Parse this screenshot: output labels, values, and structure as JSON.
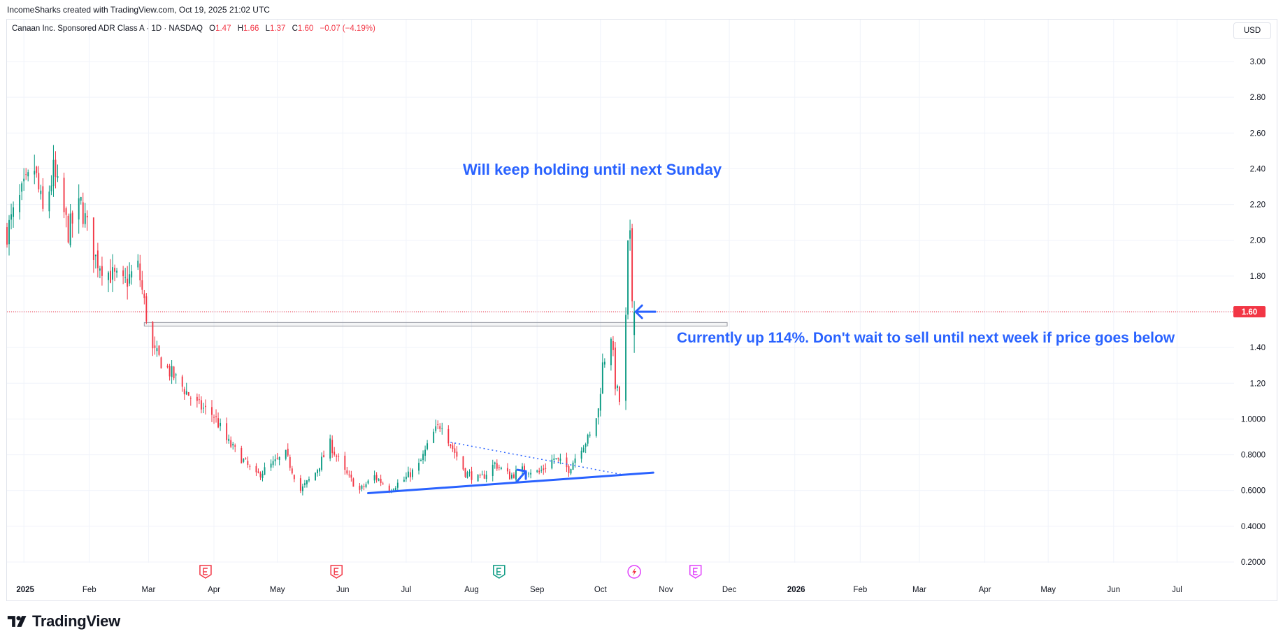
{
  "credit": "IncomeSharks created with TradingView.com, Oct 19, 2025 21:02 UTC",
  "legend": {
    "symbol": "Canaan Inc. Sponsored ADR Class A · 1D · NASDAQ",
    "o_label": "O",
    "o_value": "1.47",
    "h_label": "H",
    "h_value": "1.66",
    "l_label": "L",
    "l_value": "1.37",
    "c_label": "C",
    "c_value": "1.60",
    "change": "−0.07 (−4.19%)"
  },
  "currency": "USD",
  "last_price_label": "1.60",
  "annotations": {
    "hold": "Will keep holding until next Sunday",
    "current": "Currently up 114%. Don't wait to sell until next week if price goes below"
  },
  "brand": "TradingView",
  "colors": {
    "up": "#089981",
    "down": "#f23645",
    "annotation": "#2962ff",
    "grid": "#f0f3fa",
    "price_line": "#f23645",
    "earnings_past": "#f23645",
    "earnings_mid": "#089981",
    "earnings_future": "#e040fb"
  },
  "icons": [
    "earnings-marker-icon",
    "dividend-bolt-icon",
    "arrow-left-icon",
    "arrow-up-icon",
    "tradingview-logo-icon"
  ],
  "chart_data": {
    "type": "candlestick",
    "title": "Canaan Inc. Sponsored ADR Class A · 1D · NASDAQ",
    "y_ticks": [
      "3.00",
      "2.80",
      "2.60",
      "2.40",
      "2.20",
      "2.00",
      "1.80",
      "1.60",
      "1.40",
      "1.20",
      "1.0000",
      "0.8000",
      "0.6000",
      "0.4000",
      "0.2000"
    ],
    "ylim": [
      0.1,
      3.1
    ],
    "x_ticks": [
      {
        "label": "2025",
        "date": "2025-01-01",
        "bold": true
      },
      {
        "label": "Feb",
        "date": "2025-02-01"
      },
      {
        "label": "Mar",
        "date": "2025-03-01"
      },
      {
        "label": "Apr",
        "date": "2025-04-01"
      },
      {
        "label": "May",
        "date": "2025-05-01"
      },
      {
        "label": "Jun",
        "date": "2025-06-01"
      },
      {
        "label": "Jul",
        "date": "2025-07-01"
      },
      {
        "label": "Aug",
        "date": "2025-08-01"
      },
      {
        "label": "Sep",
        "date": "2025-09-01"
      },
      {
        "label": "Oct",
        "date": "2025-10-01"
      },
      {
        "label": "Nov",
        "date": "2025-11-01"
      },
      {
        "label": "Dec",
        "date": "2025-12-01"
      },
      {
        "label": "2026",
        "date": "2026-01-01",
        "bold": true
      },
      {
        "label": "Feb",
        "date": "2026-02-01"
      },
      {
        "label": "Mar",
        "date": "2026-03-01"
      },
      {
        "label": "Apr",
        "date": "2026-04-01"
      },
      {
        "label": "May",
        "date": "2026-05-01"
      },
      {
        "label": "Jun",
        "date": "2026-06-01"
      },
      {
        "label": "Jul",
        "date": "2026-07-01"
      }
    ],
    "xlim": [
      "2024-12-24",
      "2026-07-28"
    ],
    "grid": true,
    "last_price": 1.6,
    "close_anchors": [
      [
        "2024-12-24",
        2.05
      ],
      [
        "2024-12-31",
        2.25
      ],
      [
        "2025-01-06",
        2.4
      ],
      [
        "2025-01-10",
        2.15
      ],
      [
        "2025-01-15",
        2.38
      ],
      [
        "2025-01-22",
        2.05
      ],
      [
        "2025-01-28",
        2.2
      ],
      [
        "2025-02-04",
        1.9
      ],
      [
        "2025-02-10",
        1.82
      ],
      [
        "2025-02-17",
        1.75
      ],
      [
        "2025-02-24",
        1.85
      ],
      [
        "2025-02-28",
        1.58
      ],
      [
        "2025-03-03",
        1.38
      ],
      [
        "2025-03-10",
        1.28
      ],
      [
        "2025-03-17",
        1.18
      ],
      [
        "2025-03-24",
        1.08
      ],
      [
        "2025-04-01",
        1.02
      ],
      [
        "2025-04-07",
        0.88
      ],
      [
        "2025-04-14",
        0.78
      ],
      [
        "2025-04-21",
        0.68
      ],
      [
        "2025-04-28",
        0.74
      ],
      [
        "2025-05-05",
        0.8
      ],
      [
        "2025-05-12",
        0.6
      ],
      [
        "2025-05-19",
        0.7
      ],
      [
        "2025-05-26",
        0.86
      ],
      [
        "2025-06-02",
        0.7
      ],
      [
        "2025-06-09",
        0.6
      ],
      [
        "2025-06-16",
        0.68
      ],
      [
        "2025-06-23",
        0.61
      ],
      [
        "2025-06-30",
        0.66
      ],
      [
        "2025-07-07",
        0.74
      ],
      [
        "2025-07-14",
        0.92
      ],
      [
        "2025-07-18",
        0.98
      ],
      [
        "2025-07-22",
        0.86
      ],
      [
        "2025-07-29",
        0.7
      ],
      [
        "2025-08-05",
        0.66
      ],
      [
        "2025-08-12",
        0.75
      ],
      [
        "2025-08-19",
        0.68
      ],
      [
        "2025-08-26",
        0.72
      ],
      [
        "2025-09-02",
        0.7
      ],
      [
        "2025-09-09",
        0.78
      ],
      [
        "2025-09-16",
        0.72
      ],
      [
        "2025-09-22",
        0.85
      ],
      [
        "2025-09-26",
        0.9
      ],
      [
        "2025-09-30",
        1.05
      ],
      [
        "2025-10-02",
        1.3
      ],
      [
        "2025-10-06",
        1.48
      ],
      [
        "2025-10-08",
        1.2
      ],
      [
        "2025-10-10",
        1.1
      ],
      [
        "2025-10-13",
        1.55
      ],
      [
        "2025-10-14",
        1.95
      ],
      [
        "2025-10-15",
        1.99
      ],
      [
        "2025-10-16",
        1.67
      ],
      [
        "2025-10-17",
        1.6
      ]
    ],
    "price_extremes": {
      "high": 2.05,
      "high_date": "2025-10-15",
      "low": 0.53,
      "low_date": "2025-05-13",
      "start_high": 2.47
    },
    "zones": [
      {
        "name": "resistance-zone",
        "y1": 1.52,
        "y2": 1.54,
        "x1": "2025-02-27",
        "x2": "2025-11-30"
      }
    ],
    "trendlines": [
      {
        "name": "support-trendline",
        "style": "solid",
        "x1": "2025-06-13",
        "y1": 0.585,
        "x2": "2025-10-26",
        "y2": 0.7
      },
      {
        "name": "descending-trendline",
        "style": "dotted",
        "x1": "2025-07-22",
        "y1": 0.87,
        "x2": "2025-10-11",
        "y2": 0.69
      }
    ],
    "events": [
      {
        "type": "earnings",
        "date": "2025-03-28",
        "status": "past"
      },
      {
        "type": "earnings",
        "date": "2025-05-29",
        "status": "past"
      },
      {
        "type": "earnings",
        "date": "2025-08-14",
        "status": "mid"
      },
      {
        "type": "dividend",
        "date": "2025-10-17",
        "status": "current"
      },
      {
        "type": "earnings",
        "date": "2025-11-15",
        "status": "future"
      }
    ],
    "arrows": [
      {
        "name": "arrow-left-icon",
        "date": "2025-10-21",
        "price": 1.6
      },
      {
        "name": "arrow-up-icon",
        "date": "2025-08-26",
        "price": 0.7
      }
    ]
  }
}
